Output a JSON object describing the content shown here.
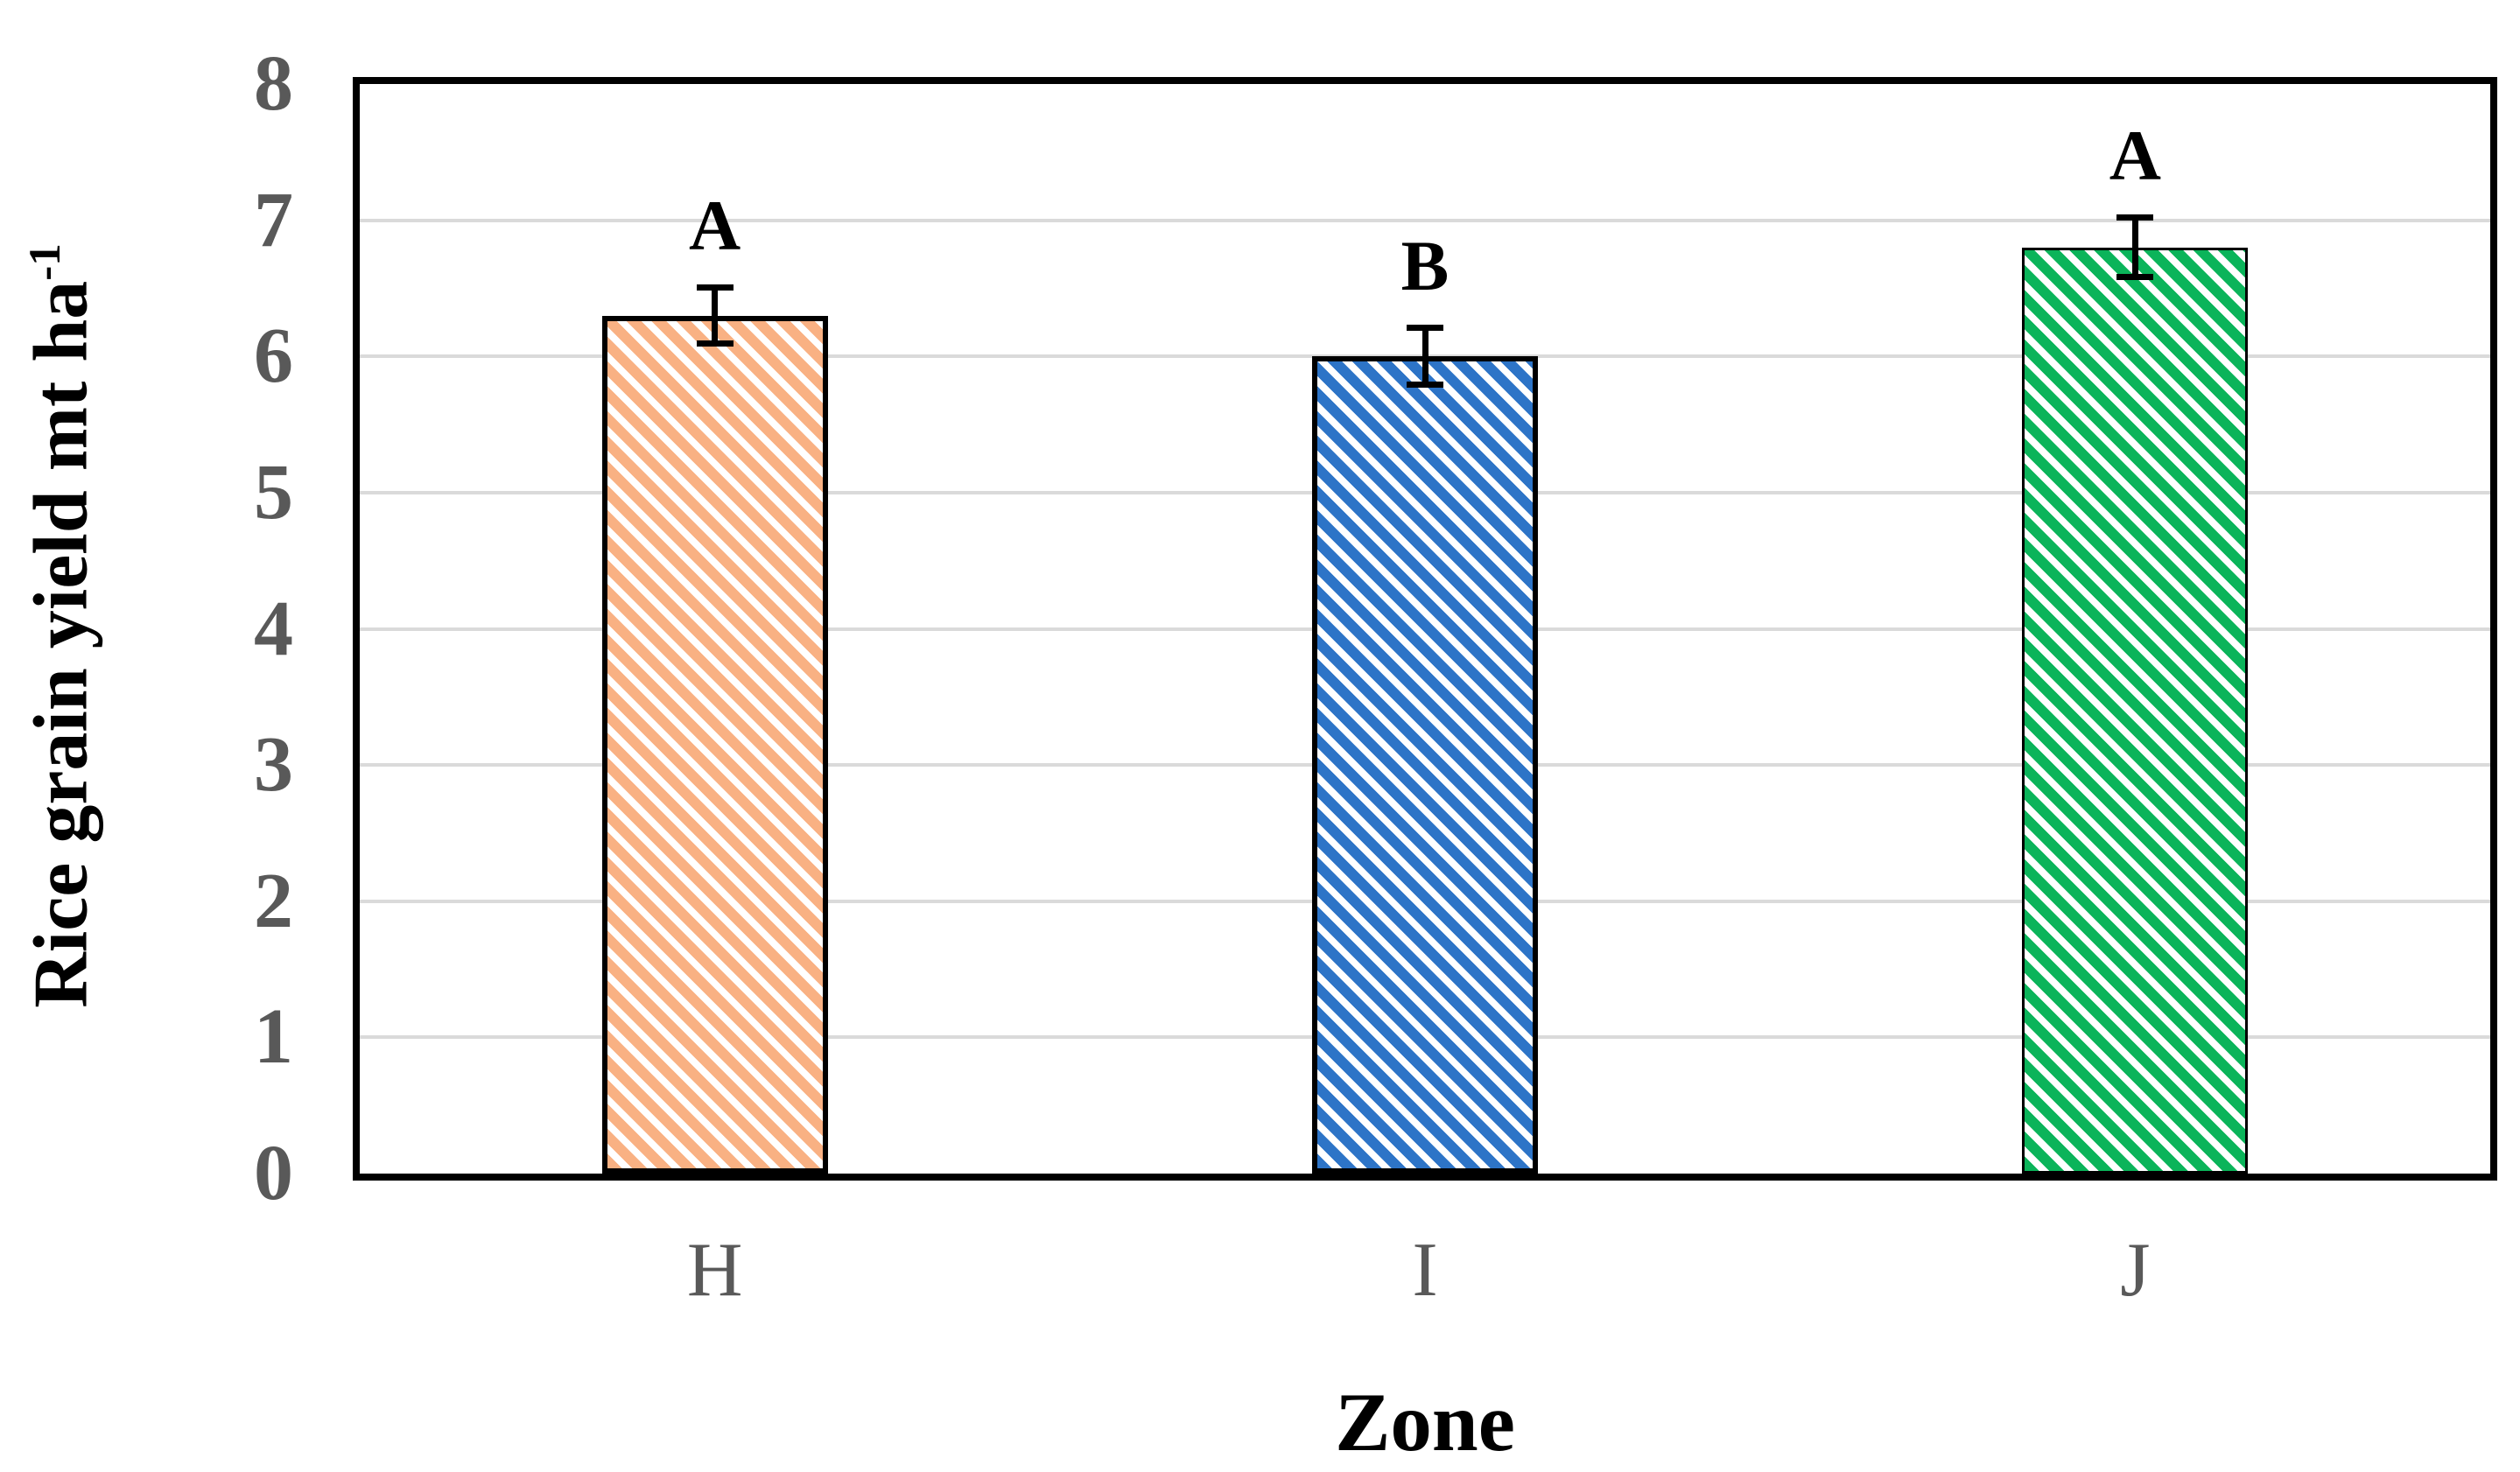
{
  "chart_data": {
    "type": "bar",
    "title": "",
    "xlabel": "Zone",
    "ylabel": "Rice grain yield mt ha⁻¹",
    "ylabel_parts": {
      "base": "Rice grain yield mt ha",
      "superscript": "-1"
    },
    "categories": [
      "H",
      "I",
      "J"
    ],
    "series": [
      {
        "name": "Rice grain yield",
        "values": [
          6.3,
          6.0,
          6.8
        ]
      }
    ],
    "error_bars_plus_minus": [
      0.23,
      0.23,
      0.24
    ],
    "significance_letters": [
      "A",
      "B",
      "A"
    ],
    "ylim": [
      0,
      8
    ],
    "yticks": [
      0,
      1,
      2,
      3,
      4,
      5,
      6,
      7,
      8
    ],
    "grid": "horizontal",
    "legend": "none",
    "bar_style": {
      "pattern": "diagonal-stripes-45deg",
      "stripe_colors": [
        "#F9B183",
        "#2D74C7",
        "#0BB45A"
      ],
      "stripe_background": "#FFFFFF",
      "border_color": "#000000",
      "border_px": [
        6,
        6,
        3
      ]
    },
    "axis_style": {
      "frame_color": "#000000",
      "tick_label_color": "#595959",
      "gridline_color": "#DADADA",
      "error_bar_color": "#000000"
    }
  }
}
